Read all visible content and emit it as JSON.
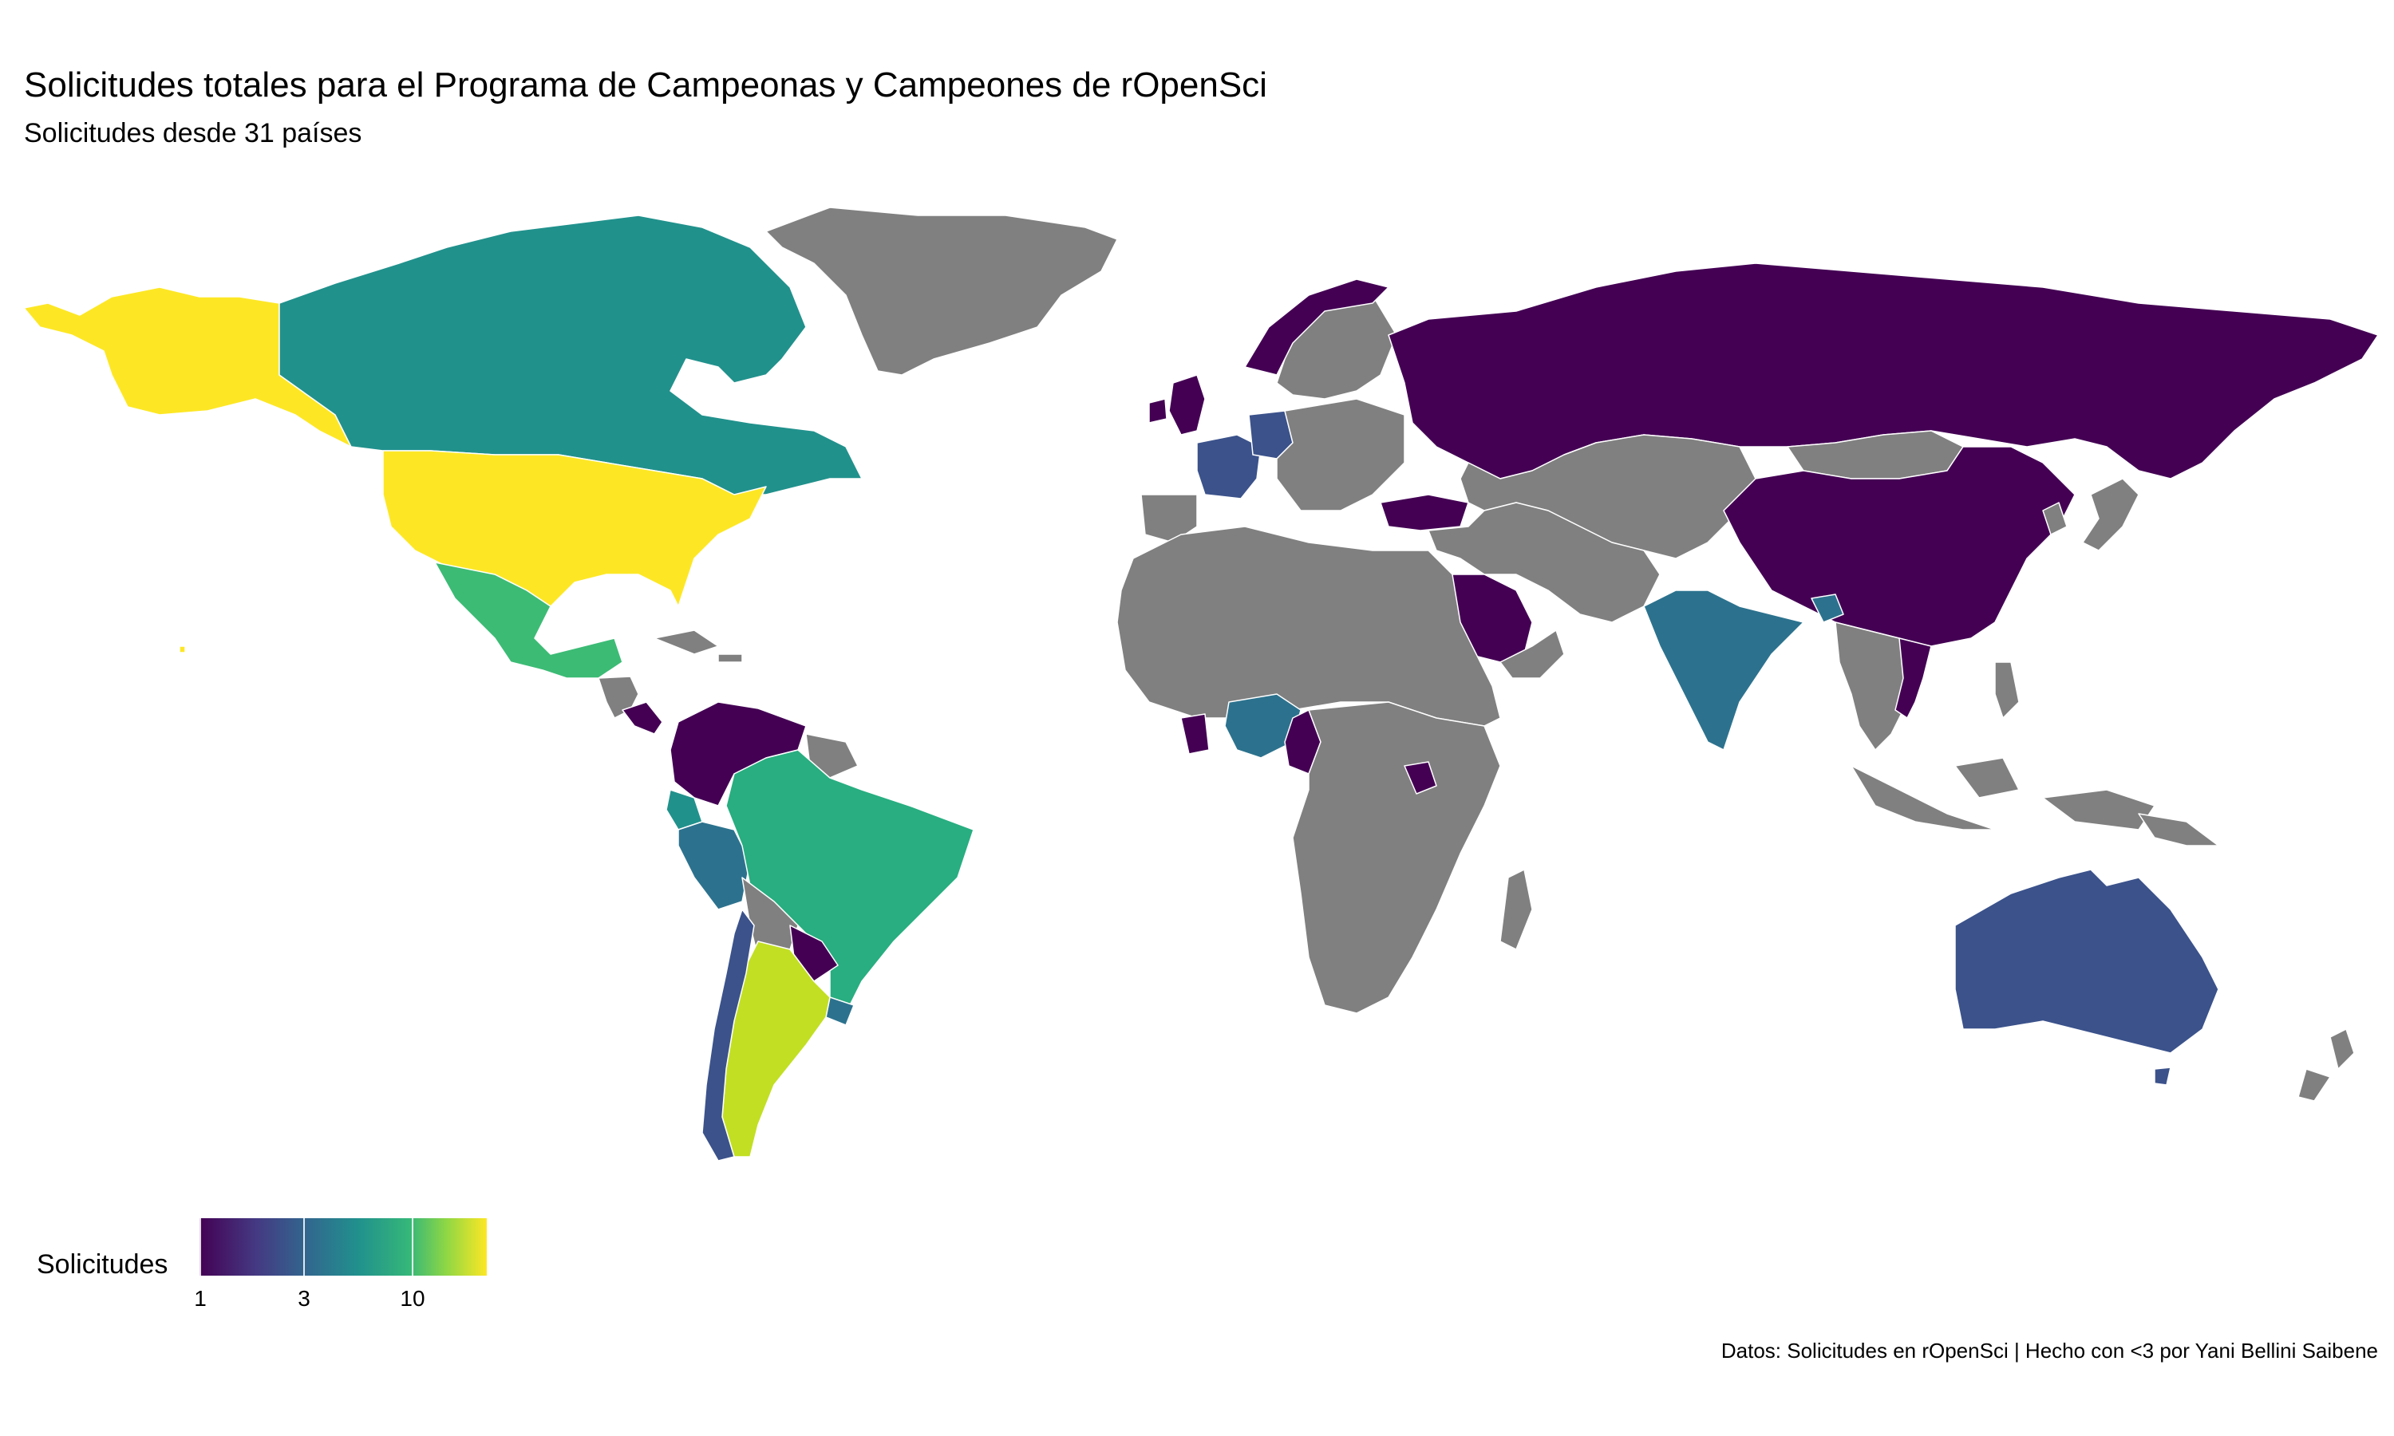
{
  "header": {
    "title": "Solicitudes totales para el Programa de Campeonas y Campeones de rOpenSci",
    "subtitle": "Solicitudes desde 31 países"
  },
  "legend": {
    "title": "Solicitudes",
    "ticks": [
      {
        "label": "1",
        "value": 1
      },
      {
        "label": "3",
        "value": 3
      },
      {
        "label": "10",
        "value": 10
      }
    ],
    "scale": "log",
    "range": [
      1,
      20
    ],
    "palette": "viridis",
    "no_data_color": "#808080"
  },
  "caption": "Datos: Solicitudes en rOpenSci | Hecho con <3 por Yani Bellini Saibene",
  "colors": {
    "viridis_1": "#440154",
    "viridis_2": "#3b528b",
    "viridis_3": "#2c728e",
    "viridis_4": "#21918c",
    "viridis_5": "#28ae80",
    "viridis_6": "#3cbb75",
    "viridis_7": "#c2df23",
    "viridis_8": "#fde725",
    "no_data": "#808080"
  }
}
